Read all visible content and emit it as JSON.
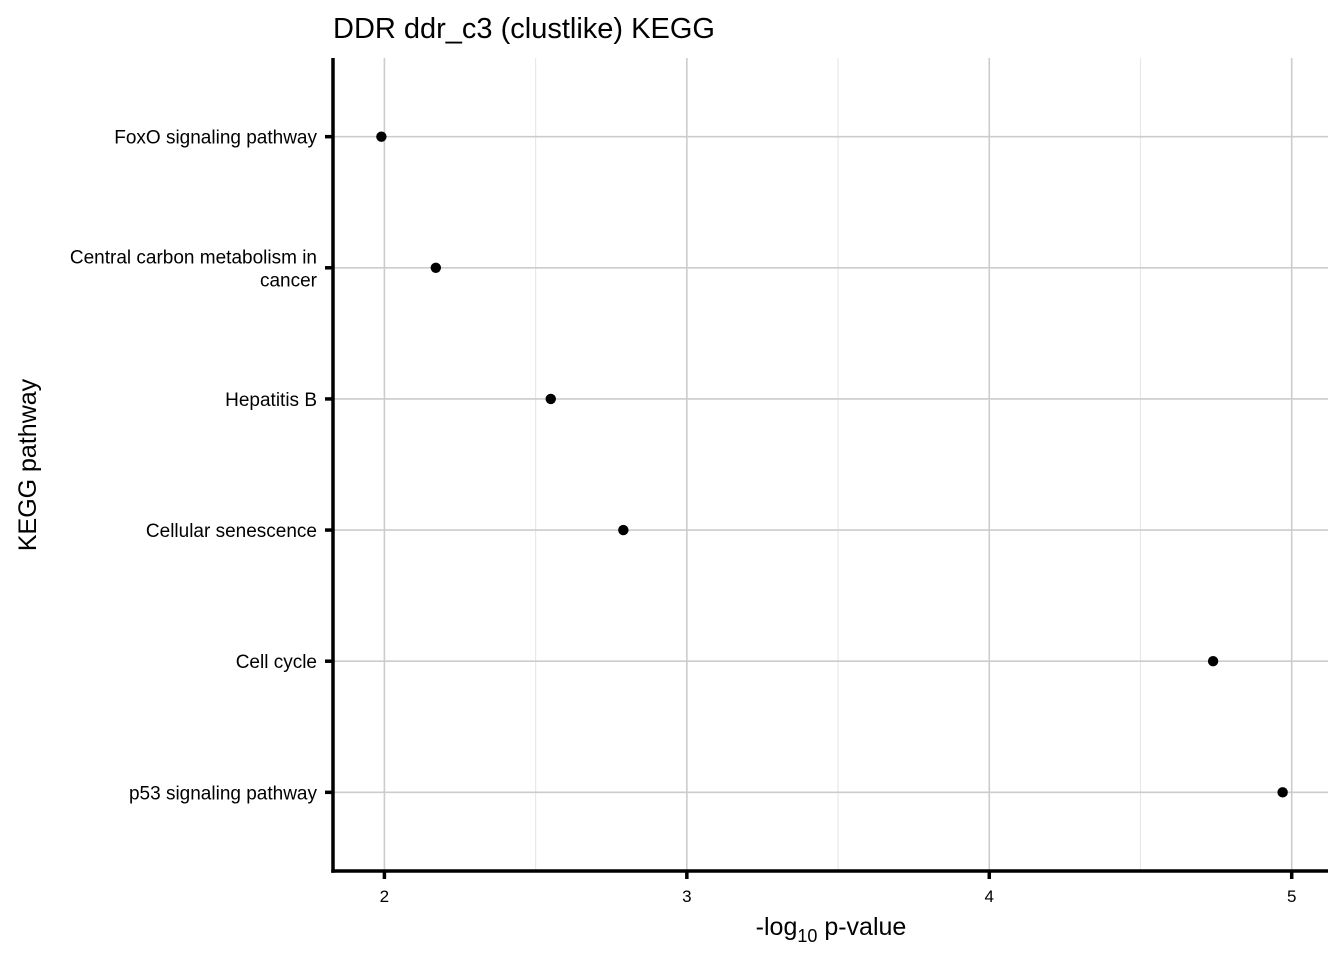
{
  "chart_data": {
    "type": "scatter",
    "title": "DDR ddr_c3 (clustlike) KEGG",
    "xlabel": {
      "prefix": "-log",
      "subscript": "10",
      "suffix": " p-value"
    },
    "ylabel": "KEGG pathway",
    "categories": [
      [
        "FoxO signaling pathway"
      ],
      [
        "Central carbon metabolism in",
        "cancer"
      ],
      [
        "Hepatitis B"
      ],
      [
        "Cellular senescence"
      ],
      [
        "Cell cycle"
      ],
      [
        "p53 signaling pathway"
      ]
    ],
    "values": [
      1.99,
      2.17,
      2.55,
      2.79,
      4.74,
      4.97
    ],
    "xticks": [
      2,
      3,
      4,
      5
    ],
    "xtick_labels": [
      "2",
      "3",
      "4",
      "5"
    ],
    "xlim": [
      1.83,
      5.12
    ],
    "grid": true
  }
}
